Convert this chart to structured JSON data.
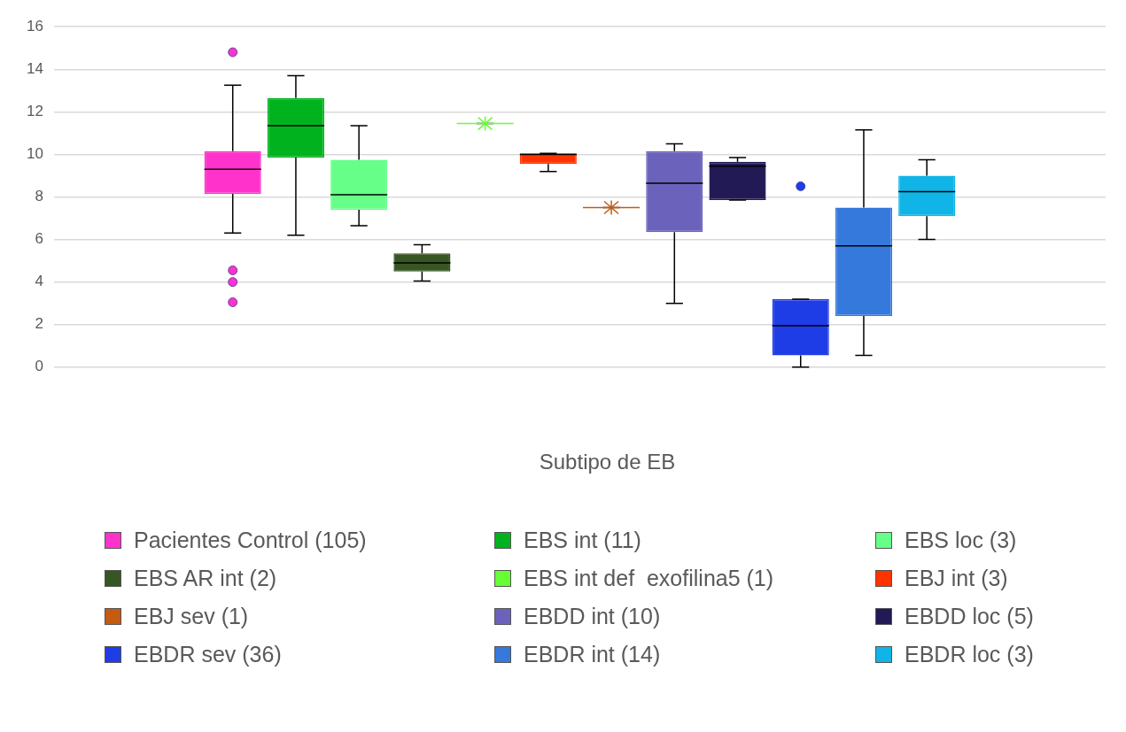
{
  "chart_data": {
    "type": "box",
    "xlabel": "Subtipo de EB",
    "categories": [
      null
    ],
    "ylim": [
      0,
      16
    ],
    "yticks": [
      0,
      2,
      4,
      6,
      8,
      10,
      12,
      14,
      16
    ],
    "grid": "y",
    "legend": "bottom",
    "series": [
      {
        "name": "Pacientes Control (105)",
        "color": "#ff33cc",
        "boxes": [
          {
            "low": 6.3,
            "q1": 8.15,
            "median": 9.3,
            "q3": 10.15,
            "high": 13.25,
            "outliers": [
              14.8,
              4.55,
              4,
              3.05
            ]
          }
        ]
      },
      {
        "name": "EBS int (11)",
        "color": "#00b31e",
        "boxes": [
          {
            "low": 6.2,
            "q1": 9.85,
            "median": 11.35,
            "q3": 12.65,
            "high": 13.7
          }
        ]
      },
      {
        "name": "EBS loc (3)",
        "color": "#66ff88",
        "boxes": [
          {
            "low": 6.65,
            "q1": 7.4,
            "median": 8.1,
            "q3": 9.75,
            "high": 11.35
          }
        ]
      },
      {
        "name": "EBS AR int (2)",
        "color": "#375623",
        "boxes": [
          {
            "low": 4.05,
            "q1": 4.5,
            "median": 4.9,
            "q3": 5.35,
            "high": 5.75
          }
        ]
      },
      {
        "name": "EBS int def  exofilina5 (1)",
        "color": "#66ff33",
        "boxes": [
          {
            "low": 11.45,
            "q1": 11.45,
            "median": 11.45,
            "q3": 11.45,
            "high": 11.45,
            "mean": 11.45
          }
        ]
      },
      {
        "name": "EBJ int (3)",
        "color": "#ff3300",
        "boxes": [
          {
            "low": 9.2,
            "q1": 9.55,
            "median": 10,
            "q3": 10.05,
            "high": 10.05
          }
        ]
      },
      {
        "name": "EBJ sev (1)",
        "color": "#c55a11",
        "boxes": [
          {
            "low": 7.5,
            "q1": 7.5,
            "median": 7.5,
            "q3": 7.5,
            "high": 7.5,
            "mean": 7.5
          }
        ]
      },
      {
        "name": "EBDD int (10)",
        "color": "#6b63bb",
        "boxes": [
          {
            "low": 3,
            "q1": 6.35,
            "median": 8.65,
            "q3": 10.15,
            "high": 10.5
          }
        ]
      },
      {
        "name": "EBDD loc (5)",
        "color": "#221a55",
        "boxes": [
          {
            "low": 7.85,
            "q1": 7.85,
            "median": 9.45,
            "q3": 9.65,
            "high": 9.85
          }
        ]
      },
      {
        "name": "EBDR sev (36)",
        "color": "#1f3de6",
        "boxes": [
          {
            "low": 0,
            "q1": 0.55,
            "median": 1.95,
            "q3": 3.2,
            "high": 3.2,
            "outliers": [
              8.5
            ]
          }
        ]
      },
      {
        "name": "EBDR int (14)",
        "color": "#3579dc",
        "boxes": [
          {
            "low": 0.55,
            "q1": 2.4,
            "median": 5.7,
            "q3": 7.5,
            "high": 11.15
          }
        ]
      },
      {
        "name": "EBDR loc (3)",
        "color": "#10b4e6",
        "boxes": [
          {
            "low": 6,
            "q1": 7.1,
            "median": 8.25,
            "q3": 9,
            "high": 9.75
          }
        ]
      }
    ]
  }
}
